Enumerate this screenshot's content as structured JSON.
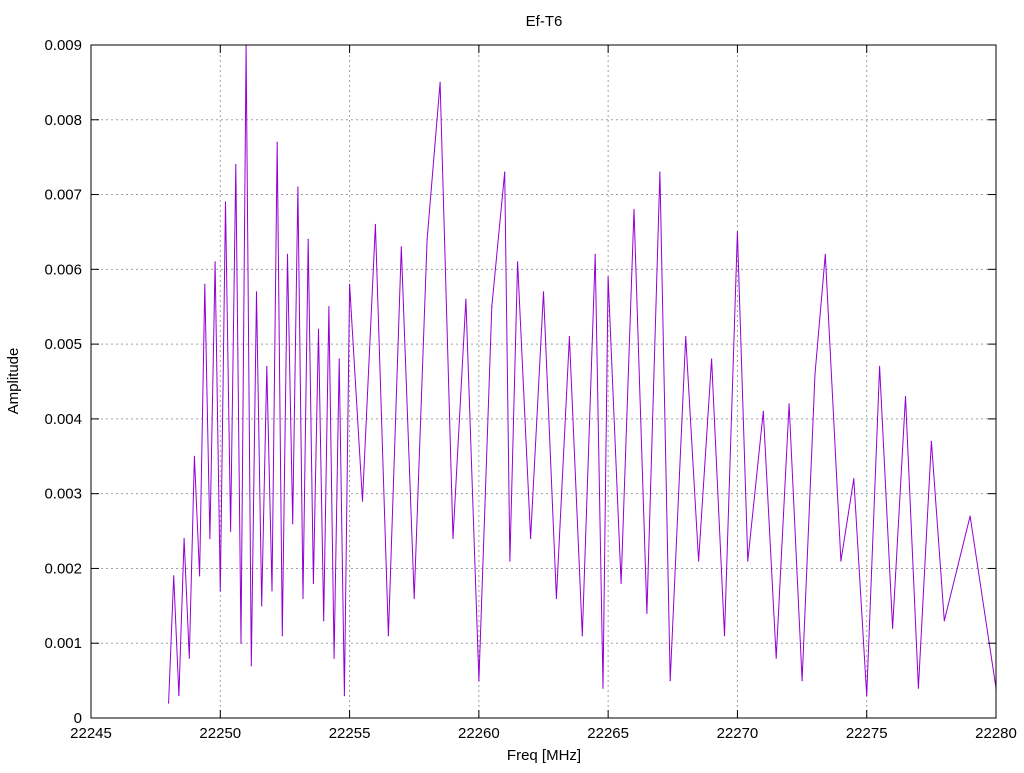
{
  "chart_data": {
    "type": "line",
    "title": "Ef-T6",
    "xlabel": "Freq [MHz]",
    "ylabel": "Amplitude",
    "xlim": [
      22245,
      22280
    ],
    "ylim": [
      0,
      0.009
    ],
    "xticks": [
      22245,
      22250,
      22255,
      22260,
      22265,
      22270,
      22275,
      22280
    ],
    "yticks": [
      0,
      0.001,
      0.002,
      0.003,
      0.004,
      0.005,
      0.006,
      0.007,
      0.008,
      0.009
    ],
    "xtick_labels": [
      "22245",
      "22250",
      "22255",
      "22260",
      "22265",
      "22270",
      "22275",
      "22280"
    ],
    "ytick_labels": [
      "0",
      "0.001",
      "0.002",
      "0.003",
      "0.004",
      "0.005",
      "0.006",
      "0.007",
      "0.008",
      "0.009"
    ],
    "grid": true,
    "legend": "none",
    "series": [
      {
        "color": "#9400d3",
        "x": [
          22248.0,
          22248.2,
          22248.4,
          22248.6,
          22248.8,
          22249.0,
          22249.2,
          22249.4,
          22249.6,
          22249.8,
          22250.0,
          22250.2,
          22250.4,
          22250.6,
          22250.8,
          22251.0,
          22251.2,
          22251.4,
          22251.6,
          22251.8,
          22252.0,
          22252.2,
          22252.4,
          22252.6,
          22252.8,
          22253.0,
          22253.2,
          22253.4,
          22253.6,
          22253.8,
          22254.0,
          22254.2,
          22254.4,
          22254.6,
          22254.8,
          22255.0,
          22255.5,
          22256.0,
          22256.5,
          22257.0,
          22257.5,
          22258.0,
          22258.5,
          22259.0,
          22259.5,
          22260.0,
          22260.5,
          22261.0,
          22261.2,
          22261.5,
          22262.0,
          22262.5,
          22263.0,
          22263.5,
          22264.0,
          22264.5,
          22264.8,
          22265.0,
          22265.5,
          22266.0,
          22266.5,
          22267.0,
          22267.4,
          22268.0,
          22268.5,
          22269.0,
          22269.5,
          22270.0,
          22270.4,
          22271.0,
          22271.5,
          22272.0,
          22272.5,
          22273.0,
          22273.4,
          22274.0,
          22274.5,
          22275.0,
          22275.5,
          22276.0,
          22276.5,
          22277.0,
          22277.5,
          22278.0,
          22279.0,
          22280.0
        ],
        "y": [
          0.0002,
          0.0019,
          0.0003,
          0.0024,
          0.0008,
          0.0035,
          0.0019,
          0.0058,
          0.0024,
          0.0061,
          0.0017,
          0.0069,
          0.0025,
          0.0074,
          0.001,
          0.009,
          0.0007,
          0.0057,
          0.0015,
          0.0047,
          0.0017,
          0.0077,
          0.0011,
          0.0062,
          0.0026,
          0.0071,
          0.0016,
          0.0064,
          0.0018,
          0.0052,
          0.0013,
          0.0055,
          0.0008,
          0.0048,
          0.0003,
          0.0058,
          0.0029,
          0.0066,
          0.0011,
          0.0063,
          0.0016,
          0.0064,
          0.0085,
          0.0024,
          0.0056,
          0.0005,
          0.0055,
          0.0073,
          0.0021,
          0.0061,
          0.0024,
          0.0057,
          0.0016,
          0.0051,
          0.0011,
          0.0062,
          0.0004,
          0.0059,
          0.0018,
          0.0068,
          0.0014,
          0.0073,
          0.0005,
          0.0051,
          0.0021,
          0.0048,
          0.0011,
          0.0065,
          0.0021,
          0.0041,
          0.0008,
          0.0042,
          0.0005,
          0.0046,
          0.0062,
          0.0021,
          0.0032,
          0.0003,
          0.0047,
          0.0012,
          0.0043,
          0.0004,
          0.0037,
          0.0013,
          0.0027,
          0.0004
        ]
      }
    ]
  }
}
